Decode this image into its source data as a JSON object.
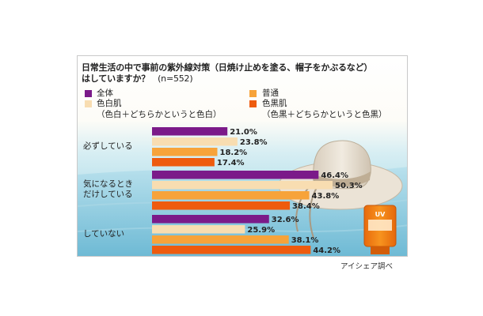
{
  "title_line1": "日常生活の中で事前の紫外線対策（日焼け止めを塗る、帽子をかぶるなど）",
  "title_line2": "はしていますか？",
  "sample_size": "(n=552)",
  "legend": [
    {
      "label": "全体",
      "sub": "",
      "color": "#7b1a89"
    },
    {
      "label": "普通",
      "sub": "",
      "color": "#f7a33a"
    },
    {
      "label": "色白肌",
      "sub": "（色白＋どちらかというと色白）",
      "color": "#f8ddb1"
    },
    {
      "label": "色黒肌",
      "sub": "（色黒＋どちらかというと色黒）",
      "color": "#ee5b0e"
    }
  ],
  "source": "アイシェア調べ",
  "product_label": "UV",
  "chart_data": {
    "type": "bar",
    "orientation": "horizontal",
    "unit": "%",
    "categories": [
      "必ずしている",
      "気になるときだけしている",
      "していない"
    ],
    "category_lines": [
      [
        "必ずしている"
      ],
      [
        "気になるとき",
        "だけしている"
      ],
      [
        "していない"
      ]
    ],
    "series": [
      {
        "name": "全体",
        "color": "#7b1a89",
        "values": [
          21.0,
          46.4,
          32.6
        ]
      },
      {
        "name": "色白肌",
        "color": "#f8ddb1",
        "values": [
          23.8,
          50.3,
          25.9
        ]
      },
      {
        "name": "普通",
        "color": "#f7a33a",
        "values": [
          18.2,
          43.8,
          38.1
        ]
      },
      {
        "name": "色黒肌",
        "color": "#ee5b0e",
        "values": [
          17.4,
          38.4,
          44.2
        ]
      }
    ],
    "value_labels": [
      [
        "21.0%",
        "46.4%",
        "32.6%"
      ],
      [
        "23.8%",
        "50.3%",
        "25.9%"
      ],
      [
        "18.2%",
        "43.8%",
        "38.1%"
      ],
      [
        "17.4%",
        "38.4%",
        "44.2%"
      ]
    ]
  }
}
